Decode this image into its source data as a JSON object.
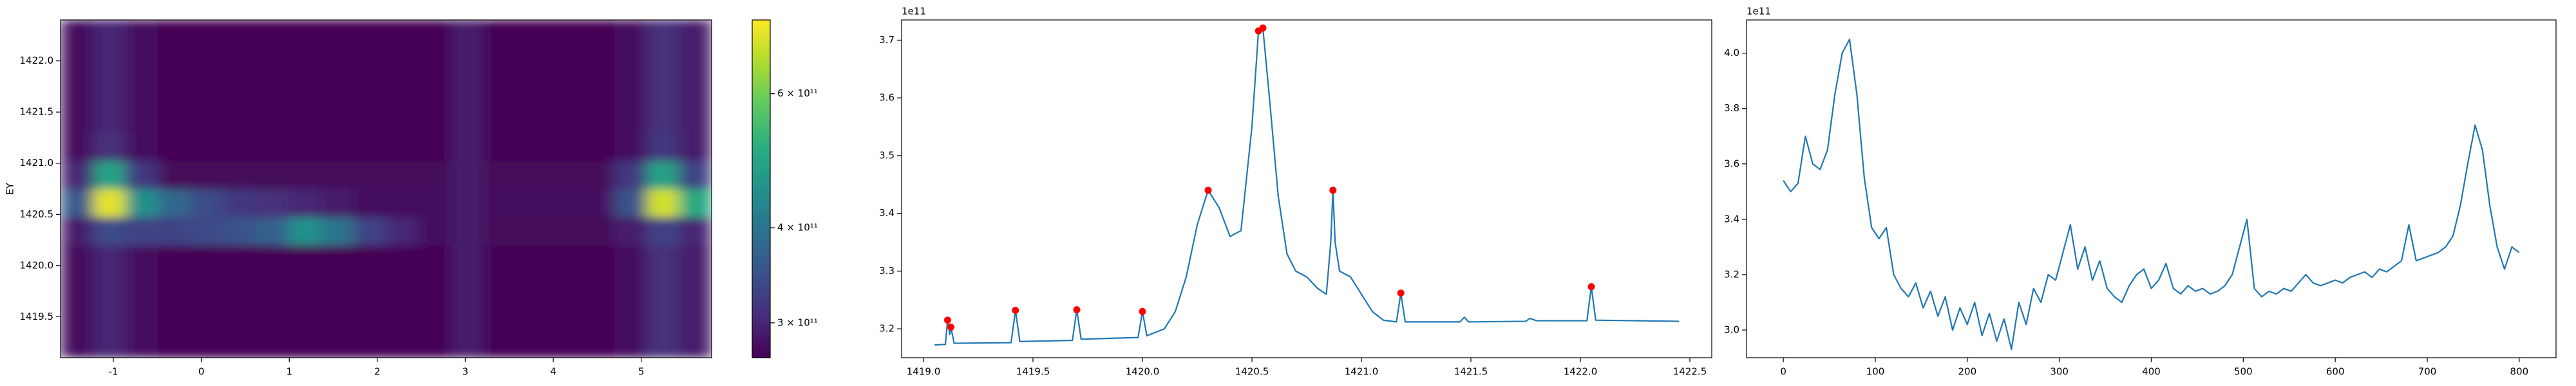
{
  "chart_data": [
    {
      "type": "heatmap",
      "ylabel": "EY",
      "colormap": "viridis",
      "cscale": "log",
      "xlim": [
        -1.6,
        5.8
      ],
      "ylim": [
        1419.1,
        1422.4
      ],
      "xticks": [
        -1,
        0,
        1,
        2,
        3,
        4,
        5
      ],
      "yticks": [
        1419.5,
        {
          "value": 1420,
          "label": "1420.0"
        },
        1420.5,
        {
          "value": 1421,
          "label": "1421.0"
        },
        1421.5,
        {
          "value": 1422,
          "label": "1422.0"
        }
      ],
      "clim": [
        270000000000.0,
        750000000000.0
      ],
      "cticks": [
        {
          "value": 300000000000.0,
          "label": "3 × 10¹¹"
        },
        {
          "value": 400000000000.0,
          "label": "4 × 10¹¹"
        },
        {
          "value": 600000000000.0,
          "label": "6 × 10¹¹"
        }
      ],
      "xbins": [
        -1.6,
        -1.23,
        -0.86,
        -0.49,
        -0.12,
        0.25,
        0.62,
        0.99,
        1.36,
        1.73,
        2.1,
        2.47,
        2.84,
        3.21,
        3.58,
        3.95,
        4.32,
        4.69,
        5.06,
        5.43,
        5.8
      ],
      "ybins": [
        1419.1,
        1419.375,
        1419.65,
        1419.925,
        1420.2,
        1420.475,
        1420.75,
        1421.025,
        1421.3,
        1421.575,
        1421.85,
        1422.125,
        1422.4
      ],
      "z": [
        [
          280000000000.0,
          300000000000.0,
          280000000000.0,
          270000000000.0,
          270000000000.0,
          270000000000.0,
          270000000000.0,
          270000000000.0,
          270000000000.0,
          270000000000.0,
          270000000000.0,
          270000000000.0,
          290000000000.0,
          270000000000.0,
          270000000000.0,
          270000000000.0,
          270000000000.0,
          280000000000.0,
          310000000000.0,
          290000000000.0
        ],
        [
          280000000000.0,
          300000000000.0,
          280000000000.0,
          270000000000.0,
          270000000000.0,
          270000000000.0,
          270000000000.0,
          270000000000.0,
          270000000000.0,
          270000000000.0,
          270000000000.0,
          270000000000.0,
          290000000000.0,
          270000000000.0,
          270000000000.0,
          270000000000.0,
          270000000000.0,
          280000000000.0,
          310000000000.0,
          290000000000.0
        ],
        [
          280000000000.0,
          300000000000.0,
          280000000000.0,
          270000000000.0,
          270000000000.0,
          270000000000.0,
          270000000000.0,
          270000000000.0,
          270000000000.0,
          270000000000.0,
          270000000000.0,
          270000000000.0,
          290000000000.0,
          270000000000.0,
          270000000000.0,
          270000000000.0,
          270000000000.0,
          280000000000.0,
          310000000000.0,
          290000000000.0
        ],
        [
          280000000000.0,
          300000000000.0,
          280000000000.0,
          270000000000.0,
          270000000000.0,
          270000000000.0,
          270000000000.0,
          270000000000.0,
          270000000000.0,
          270000000000.0,
          270000000000.0,
          270000000000.0,
          290000000000.0,
          270000000000.0,
          270000000000.0,
          270000000000.0,
          270000000000.0,
          280000000000.0,
          310000000000.0,
          290000000000.0
        ],
        [
          290000000000.0,
          340000000000.0,
          330000000000.0,
          330000000000.0,
          340000000000.0,
          350000000000.0,
          370000000000.0,
          450000000000.0,
          400000000000.0,
          330000000000.0,
          300000000000.0,
          280000000000.0,
          290000000000.0,
          275000000000.0,
          275000000000.0,
          275000000000.0,
          275000000000.0,
          290000000000.0,
          330000000000.0,
          300000000000.0
        ],
        [
          360000000000.0,
          720000000000.0,
          450000000000.0,
          380000000000.0,
          340000000000.0,
          320000000000.0,
          310000000000.0,
          300000000000.0,
          290000000000.0,
          280000000000.0,
          280000000000.0,
          280000000000.0,
          290000000000.0,
          280000000000.0,
          280000000000.0,
          280000000000.0,
          280000000000.0,
          350000000000.0,
          700000000000.0,
          500000000000.0
        ],
        [
          300000000000.0,
          480000000000.0,
          320000000000.0,
          275000000000.0,
          275000000000.0,
          275000000000.0,
          275000000000.0,
          275000000000.0,
          275000000000.0,
          275000000000.0,
          275000000000.0,
          275000000000.0,
          290000000000.0,
          275000000000.0,
          275000000000.0,
          275000000000.0,
          275000000000.0,
          320000000000.0,
          480000000000.0,
          330000000000.0
        ],
        [
          280000000000.0,
          310000000000.0,
          280000000000.0,
          270000000000.0,
          270000000000.0,
          270000000000.0,
          270000000000.0,
          270000000000.0,
          270000000000.0,
          270000000000.0,
          270000000000.0,
          270000000000.0,
          290000000000.0,
          270000000000.0,
          270000000000.0,
          270000000000.0,
          270000000000.0,
          280000000000.0,
          320000000000.0,
          290000000000.0
        ],
        [
          280000000000.0,
          300000000000.0,
          280000000000.0,
          270000000000.0,
          270000000000.0,
          270000000000.0,
          270000000000.0,
          270000000000.0,
          270000000000.0,
          270000000000.0,
          270000000000.0,
          270000000000.0,
          290000000000.0,
          270000000000.0,
          270000000000.0,
          270000000000.0,
          270000000000.0,
          280000000000.0,
          310000000000.0,
          290000000000.0
        ],
        [
          280000000000.0,
          300000000000.0,
          280000000000.0,
          270000000000.0,
          270000000000.0,
          270000000000.0,
          270000000000.0,
          270000000000.0,
          270000000000.0,
          270000000000.0,
          270000000000.0,
          270000000000.0,
          290000000000.0,
          270000000000.0,
          270000000000.0,
          270000000000.0,
          270000000000.0,
          280000000000.0,
          310000000000.0,
          290000000000.0
        ],
        [
          280000000000.0,
          300000000000.0,
          280000000000.0,
          270000000000.0,
          270000000000.0,
          270000000000.0,
          270000000000.0,
          270000000000.0,
          270000000000.0,
          270000000000.0,
          270000000000.0,
          270000000000.0,
          290000000000.0,
          270000000000.0,
          270000000000.0,
          270000000000.0,
          270000000000.0,
          280000000000.0,
          310000000000.0,
          290000000000.0
        ],
        [
          280000000000.0,
          300000000000.0,
          280000000000.0,
          270000000000.0,
          270000000000.0,
          270000000000.0,
          270000000000.0,
          270000000000.0,
          270000000000.0,
          270000000000.0,
          270000000000.0,
          270000000000.0,
          290000000000.0,
          270000000000.0,
          270000000000.0,
          270000000000.0,
          270000000000.0,
          280000000000.0,
          310000000000.0,
          290000000000.0
        ]
      ]
    },
    {
      "type": "line",
      "offset_text": "1e11",
      "color": "#1f77b4",
      "xlim": [
        1418.9,
        1422.6
      ],
      "ylim": [
        3.15,
        3.735
      ],
      "xticks": [
        {
          "value": 1419,
          "label": "1419.0"
        },
        1419.5,
        {
          "value": 1420,
          "label": "1420.0"
        },
        1420.5,
        {
          "value": 1421,
          "label": "1421.0"
        },
        1421.5,
        {
          "value": 1422,
          "label": "1422.0"
        },
        1422.5
      ],
      "yticks": [
        3.2,
        3.3,
        3.4,
        3.5,
        3.6,
        3.7
      ],
      "x": [
        1419.05,
        1419.1,
        1419.11,
        1419.12,
        1419.125,
        1419.14,
        1419.4,
        1419.42,
        1419.44,
        1419.68,
        1419.7,
        1419.72,
        1419.98,
        1420.0,
        1420.02,
        1420.1,
        1420.15,
        1420.2,
        1420.25,
        1420.3,
        1420.35,
        1420.4,
        1420.45,
        1420.5,
        1420.53,
        1420.55,
        1420.58,
        1420.62,
        1420.66,
        1420.7,
        1420.75,
        1420.8,
        1420.84,
        1420.86,
        1420.87,
        1420.88,
        1420.9,
        1420.95,
        1421.0,
        1421.05,
        1421.1,
        1421.16,
        1421.18,
        1421.2,
        1421.45,
        1421.47,
        1421.49,
        1421.75,
        1421.77,
        1421.8,
        1422.03,
        1422.05,
        1422.07,
        1422.45
      ],
      "values": [
        3.172,
        3.173,
        3.215,
        3.19,
        3.203,
        3.175,
        3.176,
        3.232,
        3.178,
        3.18,
        3.233,
        3.182,
        3.185,
        3.23,
        3.188,
        3.2,
        3.23,
        3.29,
        3.38,
        3.44,
        3.41,
        3.36,
        3.37,
        3.55,
        3.716,
        3.721,
        3.6,
        3.43,
        3.33,
        3.3,
        3.29,
        3.27,
        3.26,
        3.35,
        3.44,
        3.35,
        3.3,
        3.29,
        3.26,
        3.23,
        3.215,
        3.212,
        3.262,
        3.212,
        3.212,
        3.22,
        3.212,
        3.213,
        3.218,
        3.214,
        3.214,
        3.273,
        3.215,
        3.213
      ],
      "peaks": {
        "color": "#ff0000",
        "x": [
          1419.11,
          1419.125,
          1419.42,
          1419.7,
          1420.0,
          1420.3,
          1420.53,
          1420.55,
          1420.87,
          1421.18,
          1422.05
        ],
        "values": [
          3.215,
          3.203,
          3.232,
          3.233,
          3.23,
          3.44,
          3.716,
          3.721,
          3.44,
          3.262,
          3.273
        ]
      }
    },
    {
      "type": "line",
      "offset_text": "1e11",
      "color": "#1f77b4",
      "xlim": [
        -40,
        840
      ],
      "ylim": [
        2.9,
        4.12
      ],
      "xticks": [
        0,
        100,
        200,
        300,
        400,
        500,
        600,
        700,
        800
      ],
      "yticks": [
        {
          "value": 3,
          "label": "3.0"
        },
        3.2,
        3.4,
        3.6,
        3.8,
        {
          "value": 4,
          "label": "4.0"
        }
      ],
      "x": [
        0,
        8,
        16,
        24,
        32,
        40,
        48,
        56,
        64,
        72,
        80,
        88,
        96,
        104,
        112,
        120,
        128,
        136,
        144,
        152,
        160,
        168,
        176,
        184,
        192,
        200,
        208,
        216,
        224,
        232,
        240,
        248,
        256,
        264,
        272,
        280,
        288,
        296,
        304,
        312,
        320,
        328,
        336,
        344,
        352,
        360,
        368,
        376,
        384,
        392,
        400,
        408,
        416,
        424,
        432,
        440,
        448,
        456,
        464,
        472,
        480,
        488,
        496,
        504,
        512,
        520,
        528,
        536,
        544,
        552,
        560,
        568,
        576,
        584,
        592,
        600,
        608,
        616,
        624,
        632,
        640,
        648,
        656,
        664,
        672,
        680,
        688,
        696,
        704,
        712,
        720,
        728,
        736,
        744,
        752,
        760,
        768,
        776,
        784,
        792,
        800
      ],
      "values": [
        3.54,
        3.5,
        3.53,
        3.7,
        3.6,
        3.58,
        3.65,
        3.85,
        4.0,
        4.05,
        3.85,
        3.55,
        3.37,
        3.33,
        3.37,
        3.2,
        3.15,
        3.12,
        3.17,
        3.08,
        3.14,
        3.05,
        3.12,
        3.0,
        3.08,
        3.02,
        3.1,
        2.98,
        3.06,
        2.96,
        3.04,
        2.93,
        3.1,
        3.02,
        3.15,
        3.1,
        3.2,
        3.18,
        3.28,
        3.38,
        3.22,
        3.3,
        3.18,
        3.25,
        3.15,
        3.12,
        3.1,
        3.16,
        3.2,
        3.22,
        3.15,
        3.18,
        3.24,
        3.15,
        3.13,
        3.16,
        3.14,
        3.15,
        3.13,
        3.14,
        3.16,
        3.2,
        3.3,
        3.4,
        3.15,
        3.12,
        3.14,
        3.13,
        3.15,
        3.14,
        3.17,
        3.2,
        3.17,
        3.16,
        3.17,
        3.18,
        3.17,
        3.19,
        3.2,
        3.21,
        3.19,
        3.22,
        3.21,
        3.23,
        3.25,
        3.38,
        3.25,
        3.26,
        3.27,
        3.28,
        3.3,
        3.34,
        3.45,
        3.6,
        3.74,
        3.65,
        3.45,
        3.3,
        3.22,
        3.3,
        3.28
      ]
    }
  ]
}
